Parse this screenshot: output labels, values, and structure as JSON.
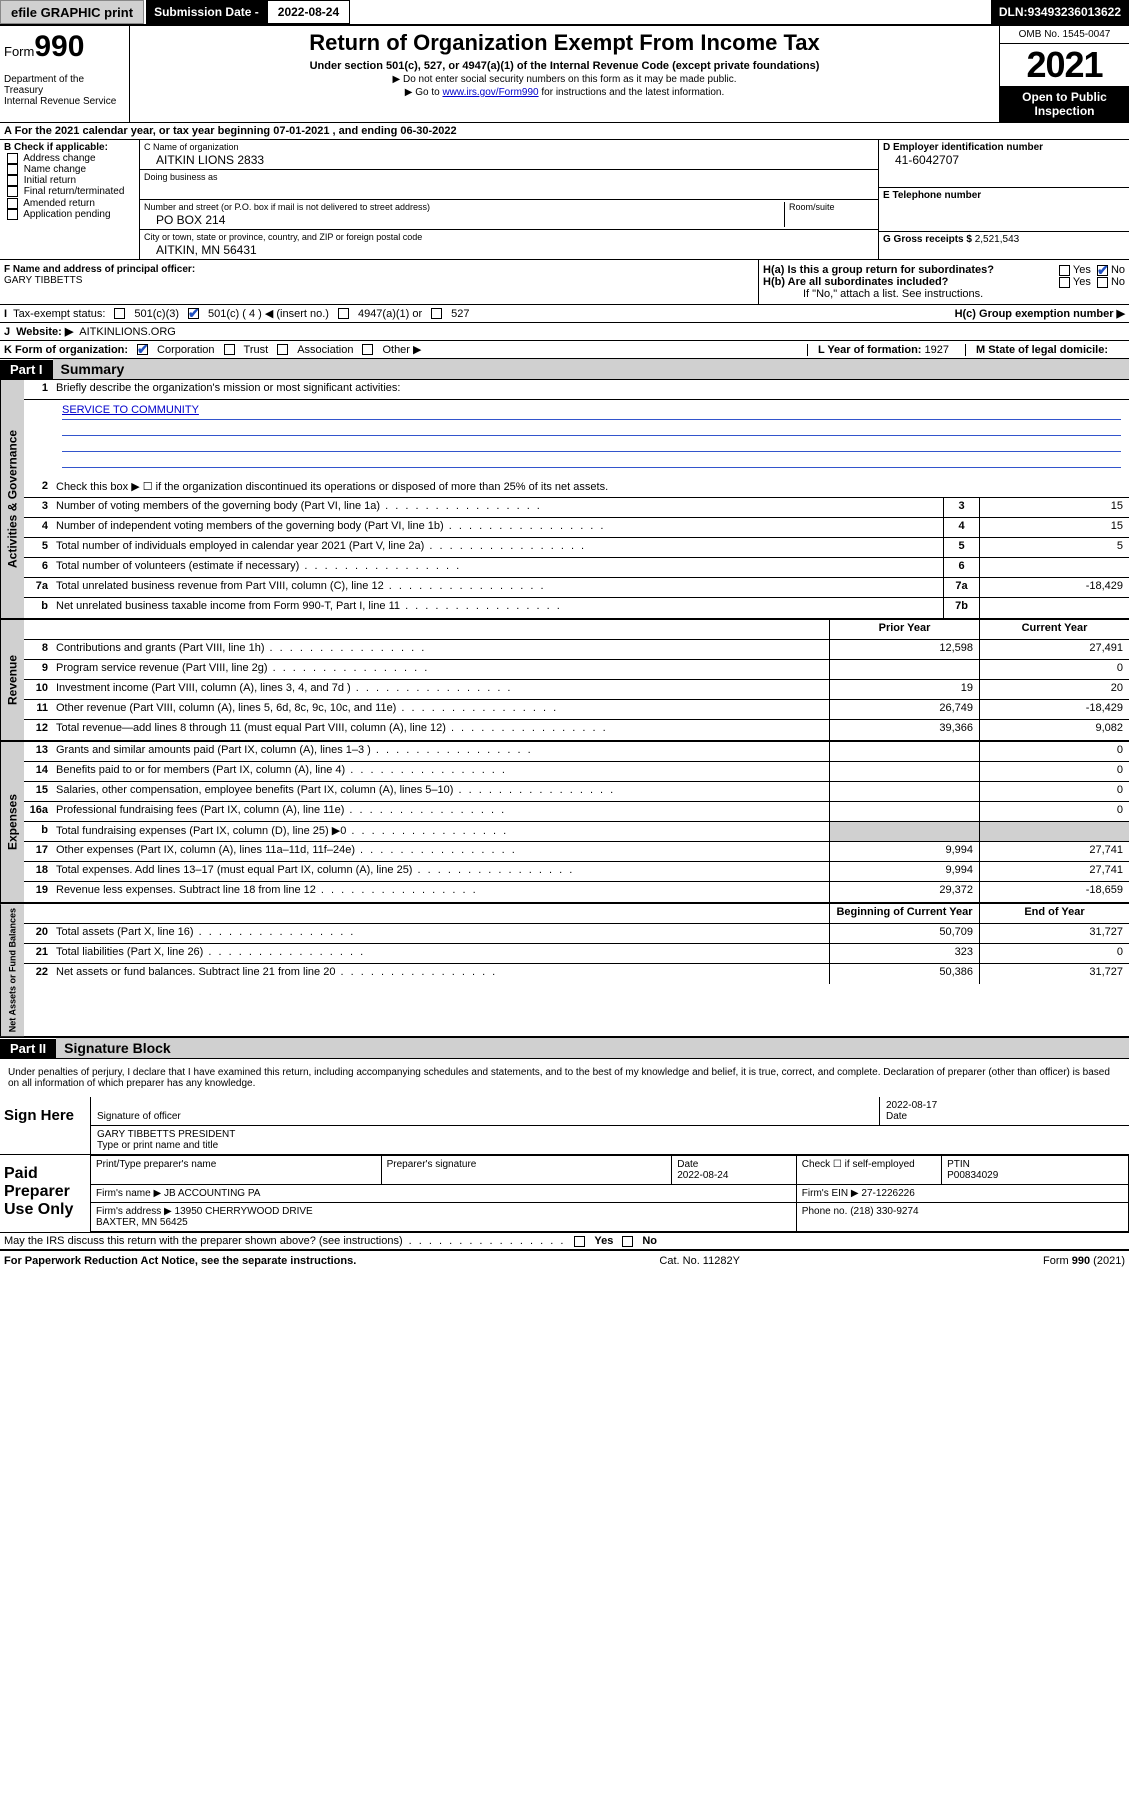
{
  "topbar": {
    "efile": "efile GRAPHIC print",
    "sub_label": "Submission Date - ",
    "sub_date": "2022-08-24",
    "dln_label": "DLN: ",
    "dln": "93493236013622"
  },
  "header": {
    "form_prefix": "Form",
    "form_num": "990",
    "dept": "Department of the Treasury\nInternal Revenue Service",
    "title": "Return of Organization Exempt From Income Tax",
    "subtitle": "Under section 501(c), 527, or 4947(a)(1) of the Internal Revenue Code (except private foundations)",
    "note1": "▶ Do not enter social security numbers on this form as it may be made public.",
    "note2_pre": "▶ Go to ",
    "note2_link": "www.irs.gov/Form990",
    "note2_post": " for instructions and the latest information.",
    "omb": "OMB No. 1545-0047",
    "year": "2021",
    "open": "Open to Public Inspection"
  },
  "A": {
    "text": "For the 2021 calendar year, or tax year beginning ",
    "begin": "07-01-2021",
    "mid": " , and ending ",
    "end": "06-30-2022"
  },
  "B": {
    "label": "B Check if applicable:",
    "opts": [
      "Address change",
      "Name change",
      "Initial return",
      "Final return/terminated",
      "Amended return",
      "Application pending"
    ]
  },
  "C": {
    "name_lbl": "C Name of organization",
    "name": "AITKIN LIONS 2833",
    "dba_lbl": "Doing business as",
    "dba": "",
    "street_lbl": "Number and street (or P.O. box if mail is not delivered to street address)",
    "street": "PO BOX 214",
    "room_lbl": "Room/suite",
    "city_lbl": "City or town, state or province, country, and ZIP or foreign postal code",
    "city": "AITKIN, MN  56431"
  },
  "D": {
    "lbl": "D Employer identification number",
    "val": "41-6042707"
  },
  "E": {
    "lbl": "E Telephone number",
    "val": ""
  },
  "G": {
    "lbl": "G Gross receipts $ ",
    "val": "2,521,543"
  },
  "F": {
    "lbl": "F Name and address of principal officer:",
    "val": "GARY TIBBETTS"
  },
  "H": {
    "a": "H(a)  Is this a group return for subordinates?",
    "b": "H(b)  Are all subordinates included?",
    "b_note": "If \"No,\" attach a list. See instructions.",
    "c": "H(c)  Group exemption number ▶",
    "yes": "Yes",
    "no": "No"
  },
  "I": {
    "lbl": "Tax-exempt status:",
    "opts": [
      "501(c)(3)",
      "501(c) ( 4 ) ◀ (insert no.)",
      "4947(a)(1) or",
      "527"
    ]
  },
  "J": {
    "lbl": "Website: ▶",
    "val": "AITKINLIONS.ORG"
  },
  "K": {
    "lbl": "K Form of organization:",
    "opts": [
      "Corporation",
      "Trust",
      "Association",
      "Other ▶"
    ]
  },
  "L": {
    "lbl": "L Year of formation: ",
    "val": "1927"
  },
  "M": {
    "lbl": "M State of legal domicile:",
    "val": ""
  },
  "part1": {
    "hdr": "Part I",
    "title": "Summary"
  },
  "q1": {
    "num": "1",
    "text": "Briefly describe the organization's mission or most significant activities:",
    "val": "SERVICE TO COMMUNITY"
  },
  "q2": {
    "num": "2",
    "text": "Check this box ▶ ☐  if the organization discontinued its operations or disposed of more than 25% of its net assets."
  },
  "rows_ag": [
    {
      "num": "3",
      "text": "Number of voting members of the governing body (Part VI, line 1a)",
      "ref": "3",
      "val": "15"
    },
    {
      "num": "4",
      "text": "Number of independent voting members of the governing body (Part VI, line 1b)",
      "ref": "4",
      "val": "15"
    },
    {
      "num": "5",
      "text": "Total number of individuals employed in calendar year 2021 (Part V, line 2a)",
      "ref": "5",
      "val": "5"
    },
    {
      "num": "6",
      "text": "Total number of volunteers (estimate if necessary)",
      "ref": "6",
      "val": ""
    },
    {
      "num": "7a",
      "text": "Total unrelated business revenue from Part VIII, column (C), line 12",
      "ref": "7a",
      "val": "-18,429"
    },
    {
      "num": "b",
      "text": "Net unrelated business taxable income from Form 990-T, Part I, line 11",
      "ref": "7b",
      "val": ""
    }
  ],
  "colhdr": {
    "prior": "Prior Year",
    "curr": "Current Year"
  },
  "rows_rev": [
    {
      "num": "8",
      "text": "Contributions and grants (Part VIII, line 1h)",
      "prior": "12,598",
      "curr": "27,491"
    },
    {
      "num": "9",
      "text": "Program service revenue (Part VIII, line 2g)",
      "prior": "",
      "curr": "0"
    },
    {
      "num": "10",
      "text": "Investment income (Part VIII, column (A), lines 3, 4, and 7d )",
      "prior": "19",
      "curr": "20"
    },
    {
      "num": "11",
      "text": "Other revenue (Part VIII, column (A), lines 5, 6d, 8c, 9c, 10c, and 11e)",
      "prior": "26,749",
      "curr": "-18,429"
    },
    {
      "num": "12",
      "text": "Total revenue—add lines 8 through 11 (must equal Part VIII, column (A), line 12)",
      "prior": "39,366",
      "curr": "9,082"
    }
  ],
  "rows_exp": [
    {
      "num": "13",
      "text": "Grants and similar amounts paid (Part IX, column (A), lines 1–3 )",
      "prior": "",
      "curr": "0"
    },
    {
      "num": "14",
      "text": "Benefits paid to or for members (Part IX, column (A), line 4)",
      "prior": "",
      "curr": "0"
    },
    {
      "num": "15",
      "text": "Salaries, other compensation, employee benefits (Part IX, column (A), lines 5–10)",
      "prior": "",
      "curr": "0"
    },
    {
      "num": "16a",
      "text": "Professional fundraising fees (Part IX, column (A), line 11e)",
      "prior": "",
      "curr": "0"
    },
    {
      "num": "b",
      "text": "Total fundraising expenses (Part IX, column (D), line 25) ▶0",
      "prior": "SHADE",
      "curr": "SHADE"
    },
    {
      "num": "17",
      "text": "Other expenses (Part IX, column (A), lines 11a–11d, 11f–24e)",
      "prior": "9,994",
      "curr": "27,741"
    },
    {
      "num": "18",
      "text": "Total expenses. Add lines 13–17 (must equal Part IX, column (A), line 25)",
      "prior": "9,994",
      "curr": "27,741"
    },
    {
      "num": "19",
      "text": "Revenue less expenses. Subtract line 18 from line 12",
      "prior": "29,372",
      "curr": "-18,659"
    }
  ],
  "colhdr2": {
    "prior": "Beginning of Current Year",
    "curr": "End of Year"
  },
  "rows_na": [
    {
      "num": "20",
      "text": "Total assets (Part X, line 16)",
      "prior": "50,709",
      "curr": "31,727"
    },
    {
      "num": "21",
      "text": "Total liabilities (Part X, line 26)",
      "prior": "323",
      "curr": "0"
    },
    {
      "num": "22",
      "text": "Net assets or fund balances. Subtract line 21 from line 20",
      "prior": "50,386",
      "curr": "31,727"
    }
  ],
  "vtabs": {
    "ag": "Activities & Governance",
    "rev": "Revenue",
    "exp": "Expenses",
    "na": "Net Assets or Fund Balances"
  },
  "part2": {
    "hdr": "Part II",
    "title": "Signature Block"
  },
  "penalty": "Under penalties of perjury, I declare that I have examined this return, including accompanying schedules and statements, and to the best of my knowledge and belief, it is true, correct, and complete. Declaration of preparer (other than officer) is based on all information of which preparer has any knowledge.",
  "sign": {
    "here": "Sign Here",
    "sig_lbl": "Signature of officer",
    "date_lbl": "Date",
    "date": "2022-08-17",
    "name": "GARY TIBBETTS PRESIDENT",
    "name_lbl": "Type or print name and title"
  },
  "paid": {
    "title": "Paid Preparer Use Only",
    "h1": "Print/Type preparer's name",
    "h2": "Preparer's signature",
    "h3": "Date",
    "h3v": "2022-08-24",
    "h4": "Check ☐ if self-employed",
    "h5": "PTIN",
    "h5v": "P00834029",
    "firm_lbl": "Firm's name  ▶",
    "firm": "JB ACCOUNTING PA",
    "ein_lbl": "Firm's EIN ▶",
    "ein": "27-1226226",
    "addr_lbl": "Firm's address ▶",
    "addr": "13950 CHERRYWOOD DRIVE\nBAXTER, MN  56425",
    "phone_lbl": "Phone no.",
    "phone": "(218) 330-9274"
  },
  "may": "May the IRS discuss this return with the preparer shown above? (see instructions)",
  "footer": {
    "left": "For Paperwork Reduction Act Notice, see the separate instructions.",
    "mid": "Cat. No. 11282Y",
    "right": "Form 990 (2021)"
  }
}
